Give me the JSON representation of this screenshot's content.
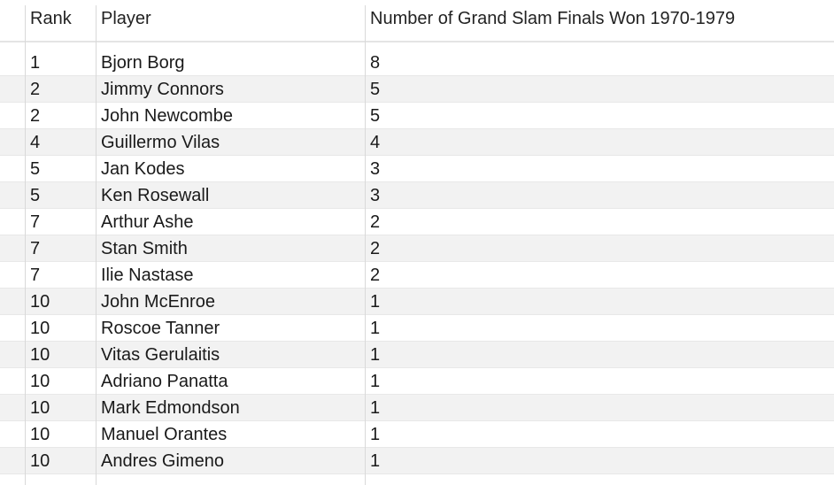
{
  "table": {
    "columns": [
      "Rank",
      "Player",
      "Number of Grand Slam Finals Won 1970-1979"
    ],
    "rows": [
      {
        "rank": "1",
        "player": "Bjorn Borg",
        "wins": "8"
      },
      {
        "rank": "2",
        "player": "Jimmy Connors",
        "wins": "5"
      },
      {
        "rank": "2",
        "player": "John Newcombe",
        "wins": "5"
      },
      {
        "rank": "4",
        "player": "Guillermo Vilas",
        "wins": "4"
      },
      {
        "rank": "5",
        "player": "Jan Kodes",
        "wins": "3"
      },
      {
        "rank": "5",
        "player": "Ken Rosewall",
        "wins": "3"
      },
      {
        "rank": "7",
        "player": "Arthur Ashe",
        "wins": "2"
      },
      {
        "rank": "7",
        "player": "Stan Smith",
        "wins": "2"
      },
      {
        "rank": "7",
        "player": "Ilie Nastase",
        "wins": "2"
      },
      {
        "rank": "10",
        "player": "John McEnroe",
        "wins": "1"
      },
      {
        "rank": "10",
        "player": "Roscoe Tanner",
        "wins": "1"
      },
      {
        "rank": "10",
        "player": "Vitas Gerulaitis",
        "wins": "1"
      },
      {
        "rank": "10",
        "player": "Adriano Panatta",
        "wins": "1"
      },
      {
        "rank": "10",
        "player": "Mark Edmondson",
        "wins": "1"
      },
      {
        "rank": "10",
        "player": "Manuel Orantes",
        "wins": "1"
      },
      {
        "rank": "10",
        "player": "Andres Gimeno",
        "wins": "1"
      }
    ]
  }
}
